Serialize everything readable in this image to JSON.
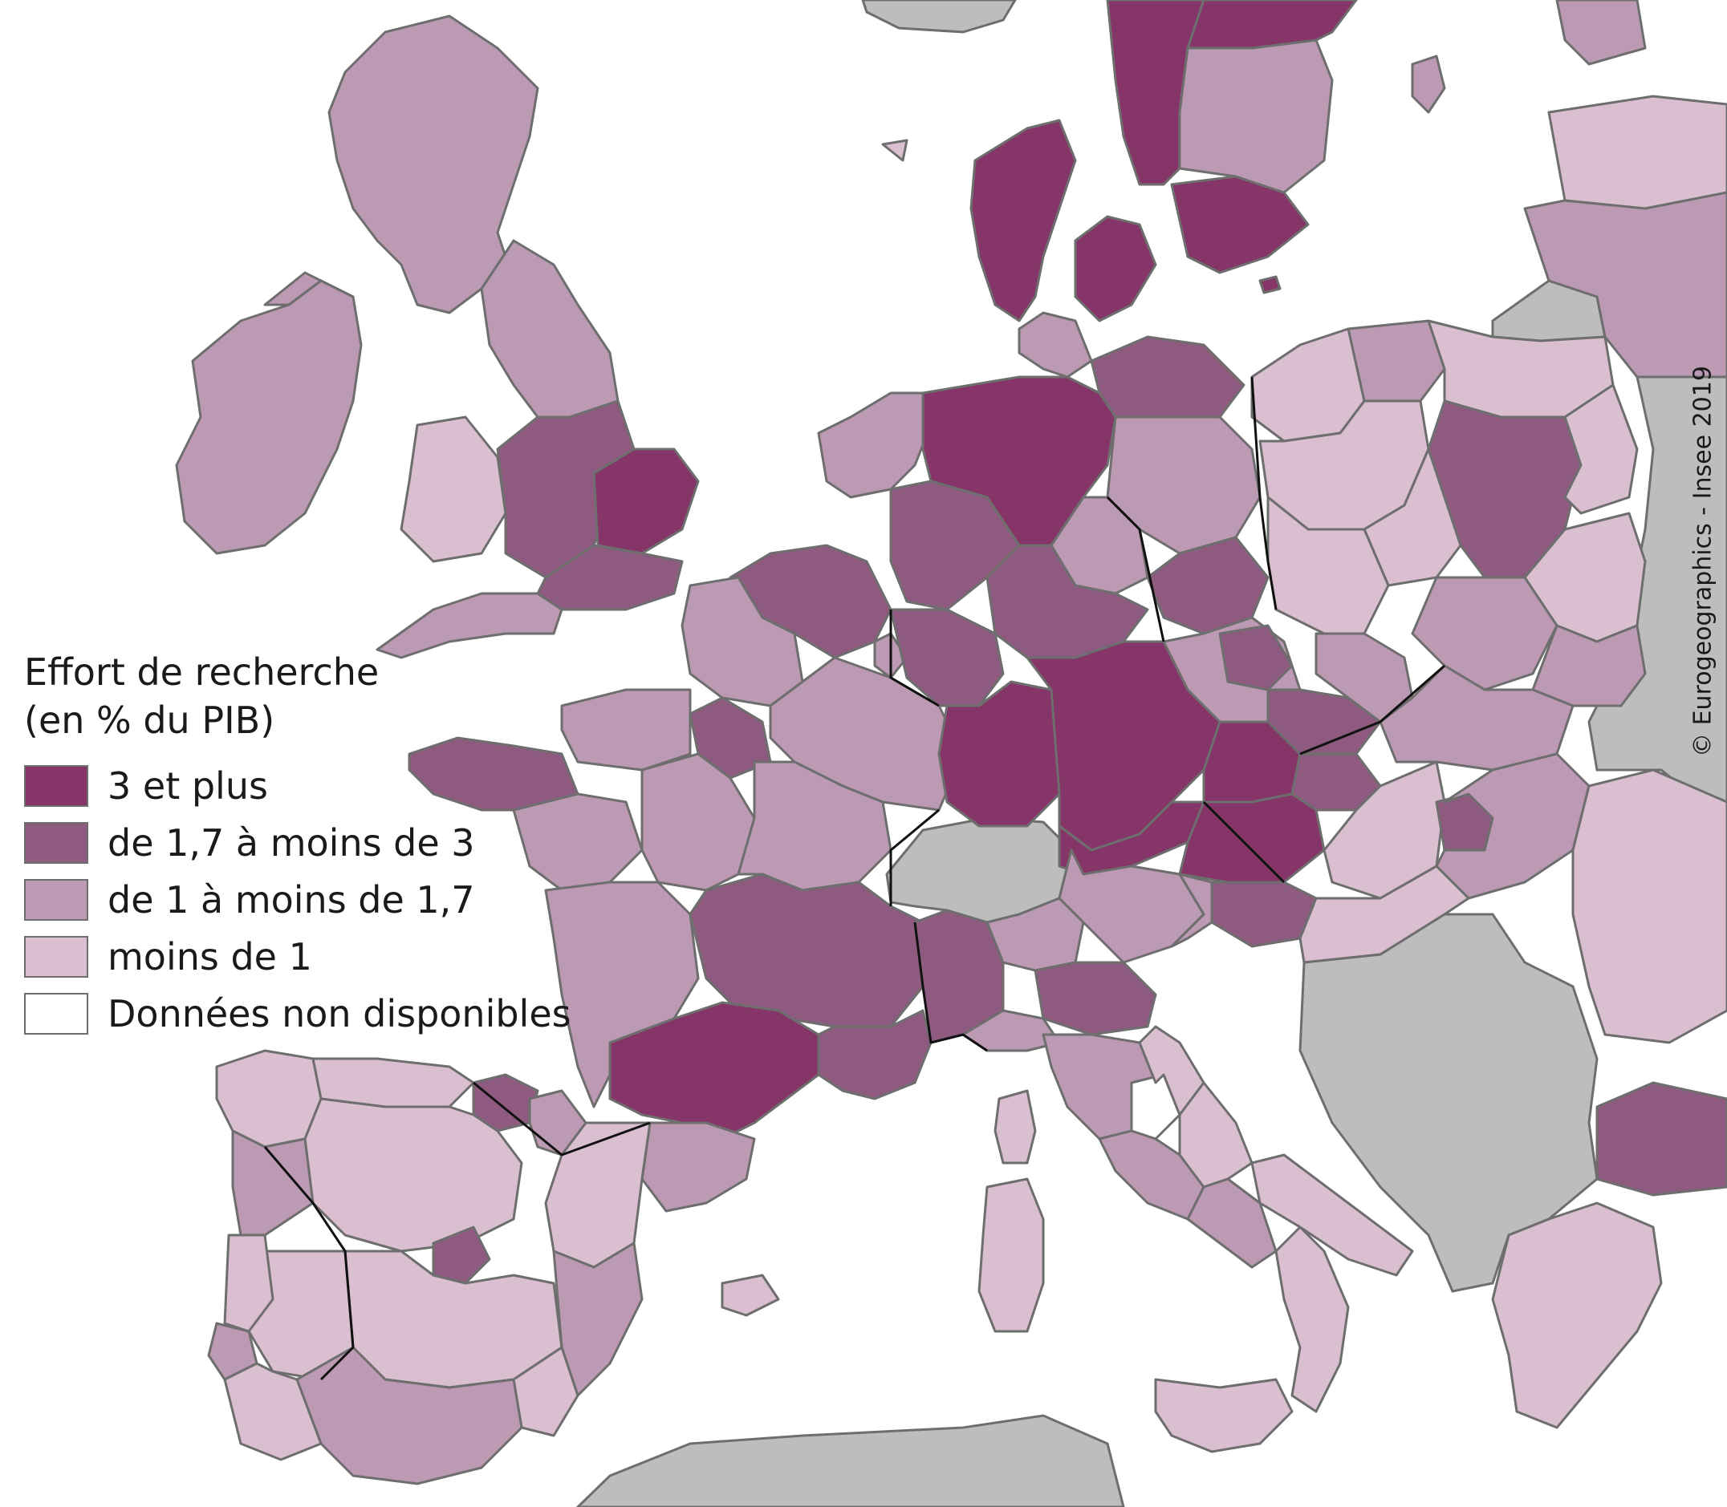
{
  "legend": {
    "title_line1": "Effort de recherche",
    "title_line2": "(en % du PIB)",
    "items": [
      {
        "label": "3 et plus",
        "color": "#853568"
      },
      {
        "label": "de 1,7 à moins de 3",
        "color": "#8e5a80"
      },
      {
        "label": "de 1 à moins de 1,7",
        "color": "#bc9ab4"
      },
      {
        "label": "moins de 1",
        "color": "#d9bfcf"
      },
      {
        "label": "Données non disponibles",
        "color": "#ffffff"
      }
    ]
  },
  "no_data_outside_color": "#bdbdbd",
  "credit": "© Eurogeographics - Insee 2019"
}
